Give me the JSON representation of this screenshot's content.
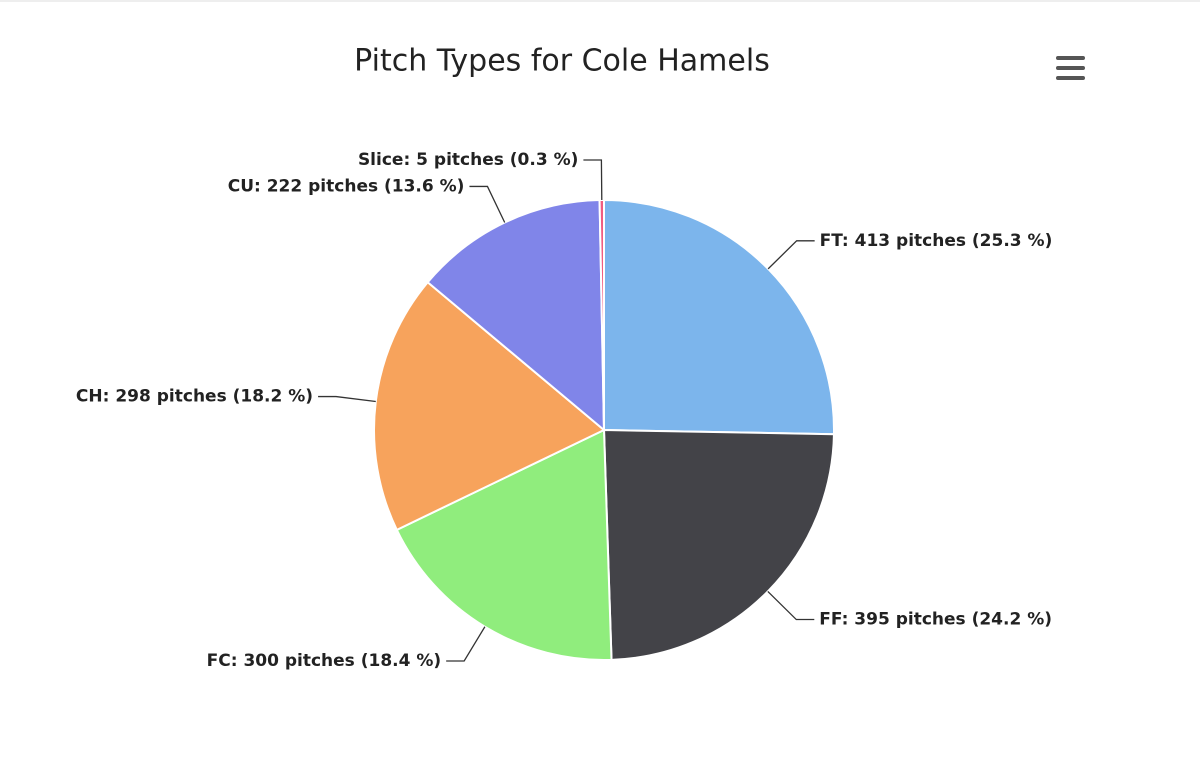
{
  "chart_data": {
    "type": "pie",
    "title": "Pitch Types for Cole Hamels",
    "values": [
      413,
      395,
      300,
      298,
      222,
      5
    ],
    "value_labels": [
      "FT: 413 pitches (25.3 %)",
      "FF: 395 pitches (24.2 %)",
      "FC: 300 pitches (18.4 %)",
      "CH: 298 pitches (18.2 %)",
      "CU: 222 pitches (13.6 %)",
      "Slice: 5 pitches (0.3 %)"
    ],
    "colors": [
      "#7cb5ec",
      "#434348",
      "#90ed7d",
      "#f7a35c",
      "#8085e9",
      "#f15c80"
    ]
  }
}
